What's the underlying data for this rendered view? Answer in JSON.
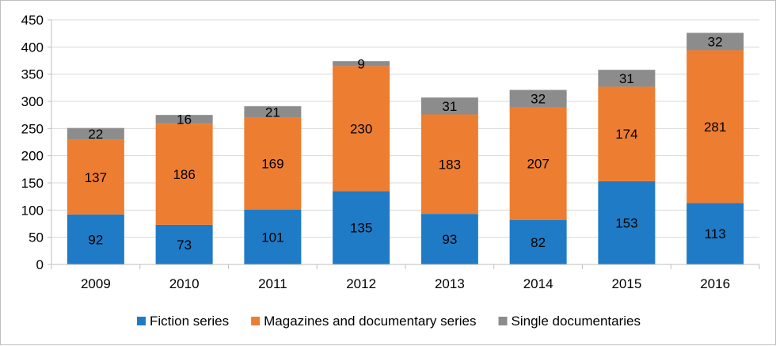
{
  "chart_data": {
    "type": "bar",
    "stacked": true,
    "categories": [
      "2009",
      "2010",
      "2011",
      "2012",
      "2013",
      "2014",
      "2015",
      "2016"
    ],
    "series": [
      {
        "name": "Fiction series",
        "values": [
          92,
          73,
          101,
          135,
          93,
          82,
          153,
          113
        ],
        "color": "#1f7bc6",
        "label_color": "#000000"
      },
      {
        "name": "Magazines and documentary series",
        "values": [
          137,
          186,
          169,
          230,
          183,
          207,
          174,
          281
        ],
        "color": "#ed7d31",
        "label_color": "#000000"
      },
      {
        "name": "Single documentaries",
        "values": [
          22,
          16,
          21,
          9,
          31,
          32,
          31,
          32
        ],
        "color": "#8c8c8c",
        "label_color": "#000000"
      }
    ],
    "y_ticks": [
      "0",
      "50",
      "100",
      "150",
      "200",
      "250",
      "300",
      "350",
      "400",
      "450"
    ],
    "ylim": [
      0,
      450
    ],
    "grid": true,
    "legend_position": "bottom",
    "title": "",
    "xlabel": "",
    "ylabel": ""
  }
}
